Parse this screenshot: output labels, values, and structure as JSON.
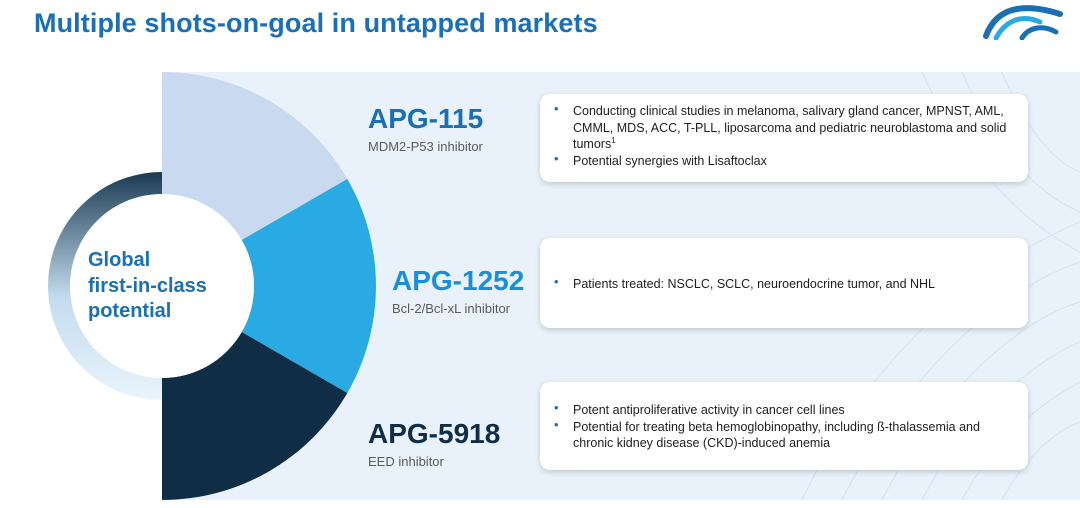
{
  "slide": {
    "title": "Multiple shots-on-goal in untapped markets"
  },
  "center": {
    "lines": [
      "Global",
      "first-in-class",
      "potential"
    ]
  },
  "products": [
    {
      "name": "APG-115",
      "subtitle": "MDM2-P53 inhibitor",
      "name_color": "#1a6fb5",
      "segment_color": "#c9d9ef",
      "bullets": [
        "Conducting clinical studies in melanoma, salivary gland cancer, MPNST, AML, CMML, MDS, ACC, T-PLL, liposarcoma and pediatric neuroblastoma and solid tumors",
        "Potential synergies with Lisaftoclax"
      ],
      "footnote_marker": "1"
    },
    {
      "name": "APG-1252",
      "subtitle": "Bcl-2/Bcl-xL inhibitor",
      "name_color": "#1a8fd9",
      "segment_color": "#29aae2",
      "bullets": [
        "Patients treated: NSCLC, SCLC, neuroendocrine tumor, and NHL"
      ]
    },
    {
      "name": "APG-5918",
      "subtitle": "EED inhibitor",
      "name_color": "#0f2d45",
      "segment_color": "#0f2d45",
      "bullets": [
        "Potent antiproliferative activity in cancer cell lines",
        "Potential for treating beta hemoglobinopathy, including ß-thalassemia and chronic kidney disease (CKD)-induced anemia"
      ]
    }
  ],
  "colors": {
    "title": "#1a6fb5",
    "panel_background": "#e9f2fa",
    "bullet": "#1a6fb5"
  },
  "logo": {
    "icon": "company-logo-icon"
  }
}
